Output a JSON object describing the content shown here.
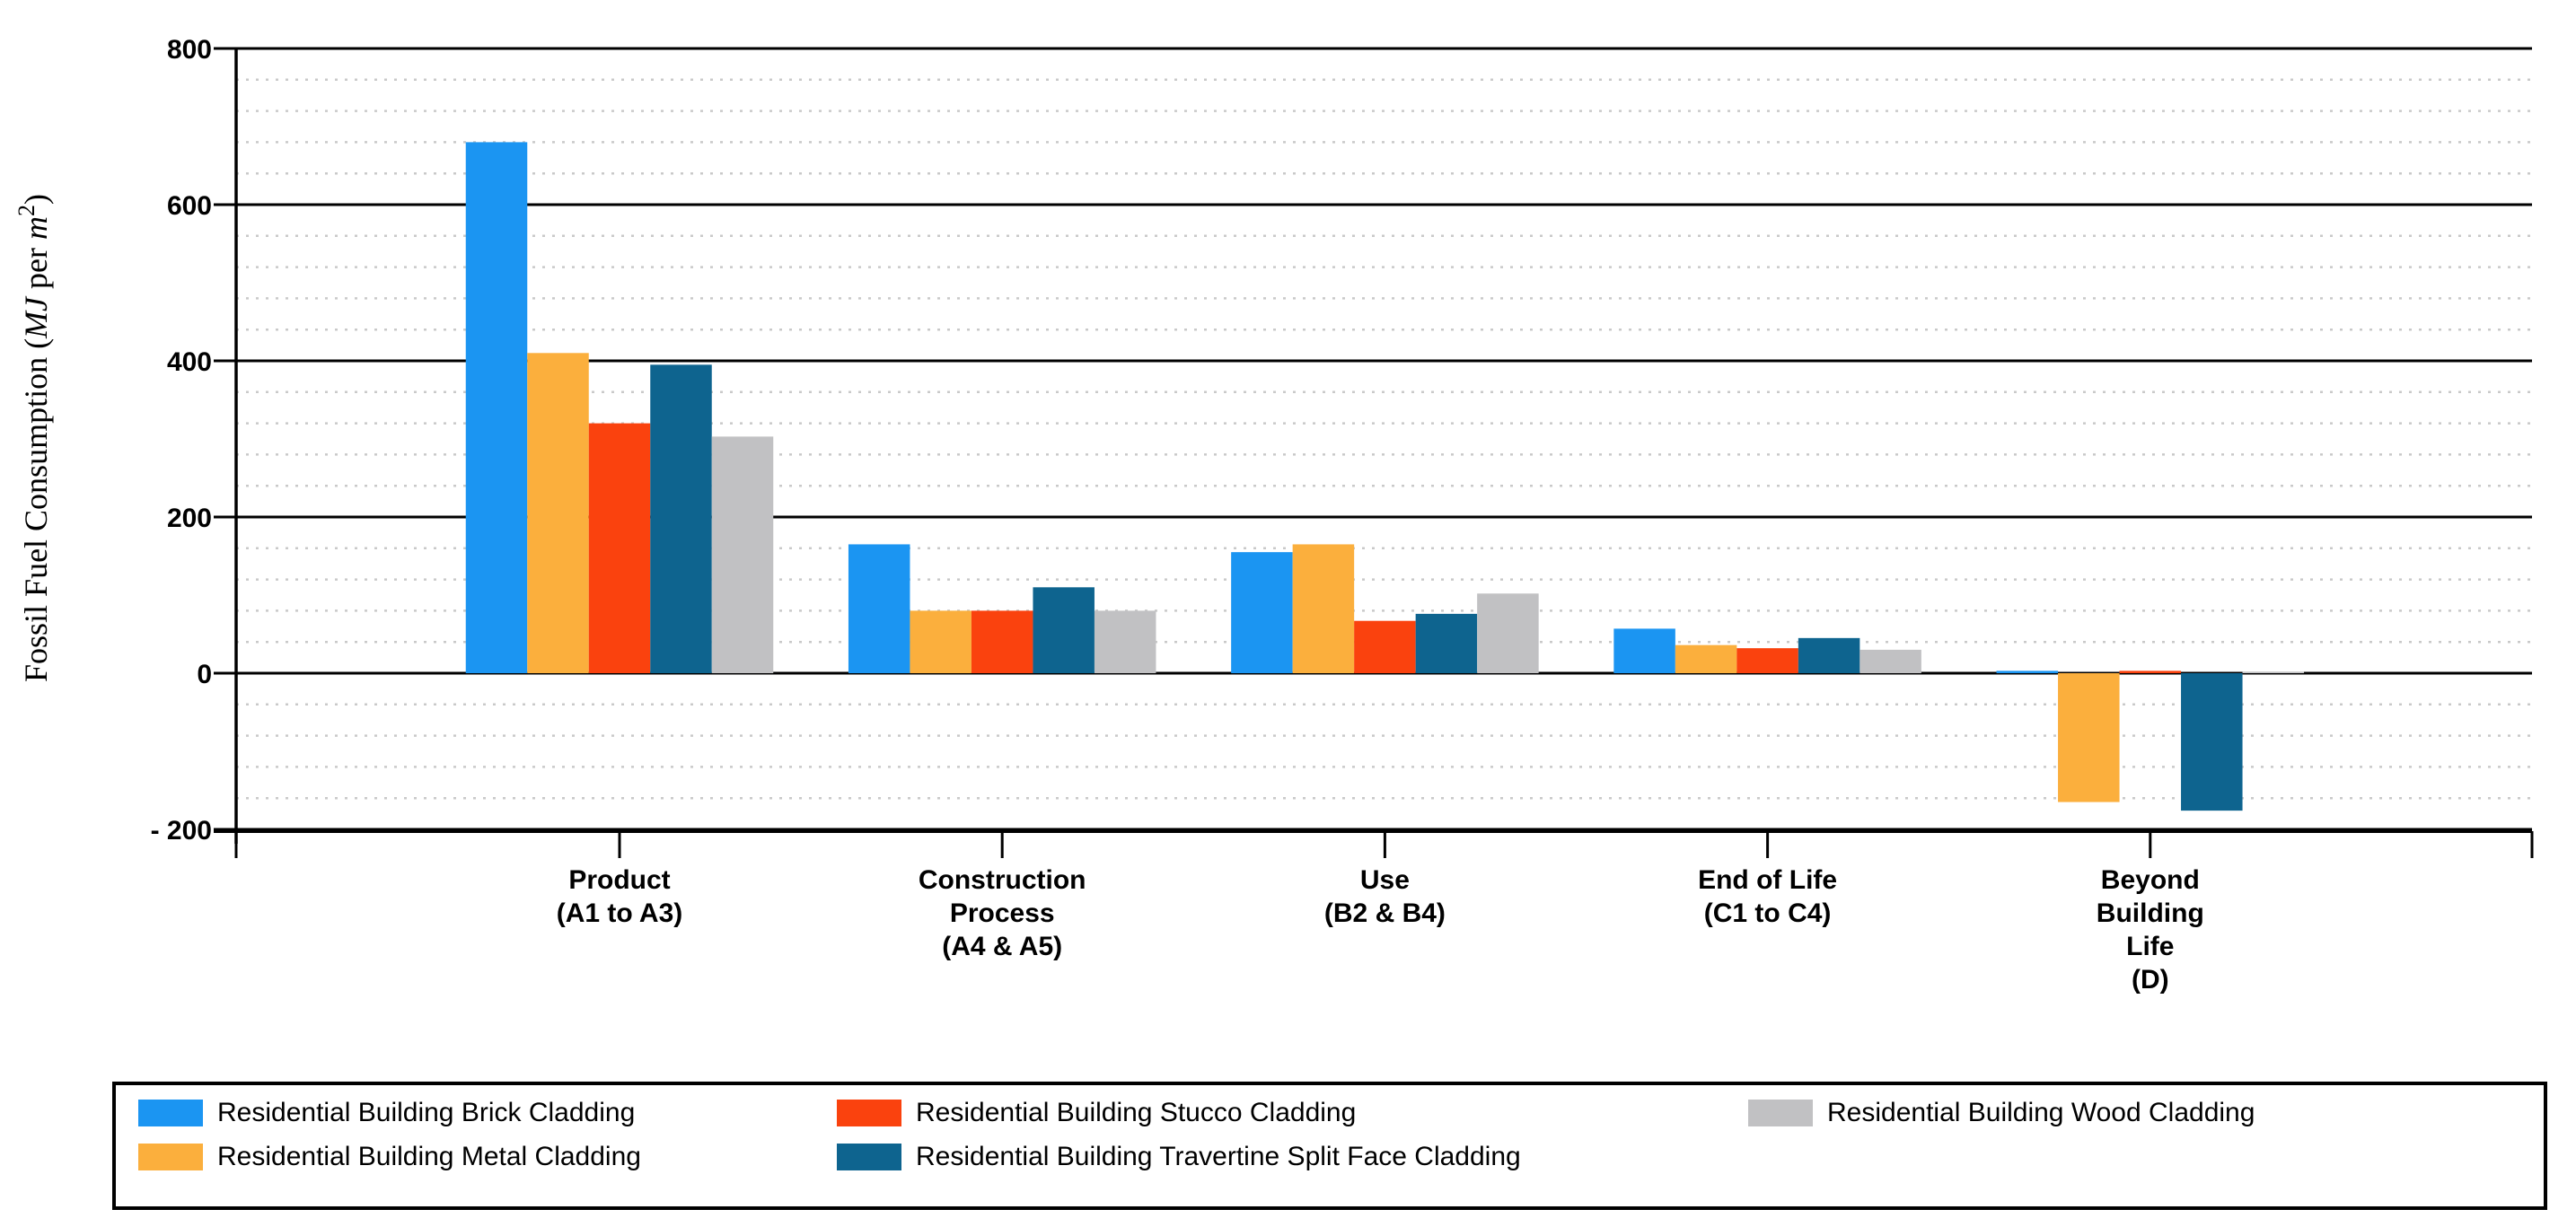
{
  "colors": {
    "axis": "#000000",
    "minor_grid": "#c9c9c9",
    "background": "#ffffff"
  },
  "chart_data": {
    "type": "bar",
    "title": "",
    "ylabel": "Fossil Fuel Consumption (MJ per m²)",
    "ylabel_parts": {
      "prefix": "Fossil Fuel Consumption (",
      "unit1_italic": "MJ",
      "mid": " per ",
      "unit2_italic": "m",
      "superscript": "2",
      "suffix": ")"
    },
    "ylim": [
      -200,
      800
    ],
    "y_major_step": 200,
    "y_minor_step": 40,
    "grid": {
      "major": "solid black",
      "minor": "dotted gray"
    },
    "legend_position": "bottom",
    "y_ticks": [
      {
        "value": 800,
        "label": "800"
      },
      {
        "value": 600,
        "label": "600"
      },
      {
        "value": 400,
        "label": "400"
      },
      {
        "value": 200,
        "label": "200"
      },
      {
        "value": 0,
        "label": "0"
      },
      {
        "value": -200,
        "label": "- 200"
      }
    ],
    "categories": [
      {
        "lines": [
          "Product",
          "(A1 to A3)"
        ]
      },
      {
        "lines": [
          "Construction",
          "Process",
          "(A4 & A5)"
        ]
      },
      {
        "lines": [
          "Use",
          "(B2 & B4)"
        ]
      },
      {
        "lines": [
          "End of Life",
          "(C1 to C4)"
        ]
      },
      {
        "lines": [
          "Beyond",
          "Building",
          "Life",
          "(D)"
        ]
      }
    ],
    "series": [
      {
        "name": "Residential Building Brick Cladding",
        "color": "#1B95F2",
        "values": [
          680,
          165,
          155,
          57,
          3
        ]
      },
      {
        "name": "Residential Building Metal Cladding",
        "color": "#FBAF3D",
        "values": [
          410,
          80,
          165,
          36,
          -165
        ]
      },
      {
        "name": "Residential Building Stucco Cladding",
        "color": "#FA420E",
        "values": [
          320,
          80,
          67,
          32,
          3
        ]
      },
      {
        "name": "Residential Building Travertine Split Face Cladding",
        "color": "#0E648F",
        "values": [
          395,
          110,
          76,
          45,
          -176
        ]
      },
      {
        "name": "Residential Building Wood Cladding",
        "color": "#C1C1C3",
        "values": [
          303,
          80,
          102,
          30,
          2
        ]
      }
    ]
  },
  "legend": {
    "column_item_indexes": [
      [
        0,
        1
      ],
      [
        2,
        3
      ],
      [
        4
      ]
    ]
  }
}
